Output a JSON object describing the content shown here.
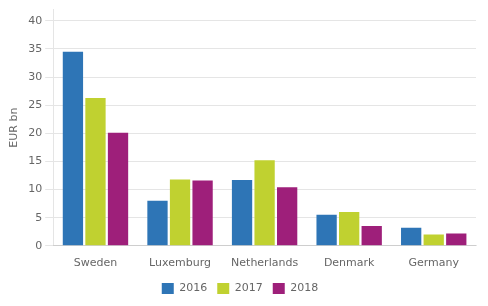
{
  "chart_data": {
    "type": "bar",
    "ylabel": "EUR bn",
    "categories": [
      "Sweden",
      "Luxemburg",
      "Netherlands",
      "Denmark",
      "Germany"
    ],
    "series": [
      {
        "name": "2016",
        "color": "#2E75B6",
        "values": [
          34.5,
          8.0,
          11.7,
          5.5,
          3.2
        ]
      },
      {
        "name": "2017",
        "color": "#C0D130",
        "values": [
          26.3,
          11.8,
          15.2,
          6.0,
          2.0
        ]
      },
      {
        "name": "2018",
        "color": "#9E1F7A",
        "values": [
          20.1,
          11.6,
          10.4,
          3.5,
          2.2
        ]
      }
    ],
    "ylim": [
      0,
      42
    ],
    "yticks": [
      0,
      5,
      10,
      15,
      20,
      25,
      30,
      35,
      40
    ],
    "grid": true,
    "legend": "bottom"
  }
}
